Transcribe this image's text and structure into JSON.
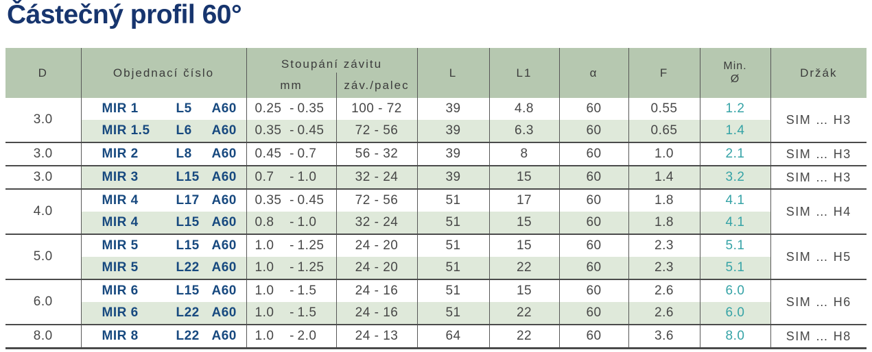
{
  "title": "Částečný profil 60°",
  "colors": {
    "title_navy": "#17356e",
    "header_green": "#b6c8b0",
    "row_shade_green": "#dfe9da",
    "order_blue": "#17497f",
    "min_diameter_teal": "#35a3a6",
    "rule_dark_gray": "#4a4a4a"
  },
  "table": {
    "dash": "-",
    "headers": {
      "d": "D",
      "order": "Objednací číslo",
      "pitch_group": "Stoupání závitu",
      "pitch_mm": "mm",
      "pitch_tpi": "záv./palec",
      "l": "L",
      "l1": "L1",
      "alpha": "α",
      "f": "F",
      "min_line1": "Min.",
      "min_line2": "Ø",
      "holder": "Držák"
    },
    "groups": [
      {
        "d": "3.0",
        "holder": "SIM … H3",
        "rows": [
          {
            "order_p1": "MIR 1",
            "order_p2": "L5",
            "order_p3": "A60",
            "mm_from": "0.25",
            "mm_to": "0.35",
            "tpi": "100 - 72",
            "l": "39",
            "l1": "4.8",
            "alpha": "60",
            "f": "0.55",
            "min": "1.2",
            "shaded": false
          },
          {
            "order_p1": "MIR 1.5",
            "order_p2": "L6",
            "order_p3": "A60",
            "mm_from": "0.35",
            "mm_to": "0.45",
            "tpi": "72 - 56",
            "l": "39",
            "l1": "6.3",
            "alpha": "60",
            "f": "0.65",
            "min": "1.4",
            "shaded": true
          }
        ]
      },
      {
        "d": "3.0",
        "holder": "SIM … H3",
        "rows": [
          {
            "order_p1": "MIR 2",
            "order_p2": "L8",
            "order_p3": "A60",
            "mm_from": "0.45",
            "mm_to": "0.7",
            "tpi": "56 - 32",
            "l": "39",
            "l1": "8",
            "alpha": "60",
            "f": "1.0",
            "min": "2.1",
            "shaded": false
          }
        ]
      },
      {
        "d": "3.0",
        "holder": "SIM … H3",
        "rows": [
          {
            "order_p1": "MIR 3",
            "order_p2": "L15",
            "order_p3": "A60",
            "mm_from": "0.7",
            "mm_to": "1.0",
            "tpi": "32 - 24",
            "l": "39",
            "l1": "15",
            "alpha": "60",
            "f": "1.4",
            "min": "3.2",
            "shaded": true
          }
        ]
      },
      {
        "d": "4.0",
        "holder": "SIM … H4",
        "rows": [
          {
            "order_p1": "MIR 4",
            "order_p2": "L17",
            "order_p3": "A60",
            "mm_from": "0.35",
            "mm_to": "0.45",
            "tpi": "72 - 56",
            "l": "51",
            "l1": "17",
            "alpha": "60",
            "f": "1.8",
            "min": "4.1",
            "shaded": false
          },
          {
            "order_p1": "MIR 4",
            "order_p2": "L15",
            "order_p3": "A60",
            "mm_from": "0.8",
            "mm_to": "1.0",
            "tpi": "32 - 24",
            "l": "51",
            "l1": "15",
            "alpha": "60",
            "f": "1.8",
            "min": "4.1",
            "shaded": true
          }
        ]
      },
      {
        "d": "5.0",
        "holder": "SIM … H5",
        "rows": [
          {
            "order_p1": "MIR 5",
            "order_p2": "L15",
            "order_p3": "A60",
            "mm_from": "1.0",
            "mm_to": "1.25",
            "tpi": "24 - 20",
            "l": "51",
            "l1": "15",
            "alpha": "60",
            "f": "2.3",
            "min": "5.1",
            "shaded": false
          },
          {
            "order_p1": "MIR 5",
            "order_p2": "L22",
            "order_p3": "A60",
            "mm_from": "1.0",
            "mm_to": "1.25",
            "tpi": "24 - 20",
            "l": "51",
            "l1": "22",
            "alpha": "60",
            "f": "2.3",
            "min": "5.1",
            "shaded": true
          }
        ]
      },
      {
        "d": "6.0",
        "holder": "SIM … H6",
        "rows": [
          {
            "order_p1": "MIR 6",
            "order_p2": "L15",
            "order_p3": "A60",
            "mm_from": "1.0",
            "mm_to": "1.5",
            "tpi": "24 - 16",
            "l": "51",
            "l1": "15",
            "alpha": "60",
            "f": "2.6",
            "min": "6.0",
            "shaded": false
          },
          {
            "order_p1": "MIR 6",
            "order_p2": "L22",
            "order_p3": "A60",
            "mm_from": "1.0",
            "mm_to": "1.5",
            "tpi": "24 - 16",
            "l": "51",
            "l1": "22",
            "alpha": "60",
            "f": "2.6",
            "min": "6.0",
            "shaded": true
          }
        ]
      },
      {
        "d": "8.0",
        "holder": "SIM … H8",
        "rows": [
          {
            "order_p1": "MIR 8",
            "order_p2": "L22",
            "order_p3": "A60",
            "mm_from": "1.0",
            "mm_to": "2.0",
            "tpi": "24 - 13",
            "l": "64",
            "l1": "22",
            "alpha": "60",
            "f": "3.6",
            "min": "8.0",
            "shaded": false
          }
        ]
      }
    ]
  }
}
